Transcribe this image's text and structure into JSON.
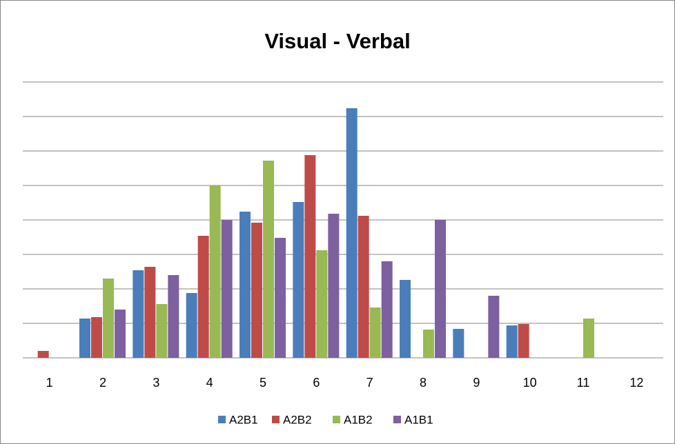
{
  "chart_data": {
    "type": "bar",
    "title": "Visual - Verbal",
    "categories": [
      "1",
      "2",
      "3",
      "4",
      "5",
      "6",
      "7",
      "8",
      "9",
      "10",
      "11",
      "12"
    ],
    "series": [
      {
        "name": "A2B1",
        "color": "#4a7ebb",
        "values": [
          0,
          1.14,
          2.54,
          1.88,
          4.24,
          4.52,
          7.24,
          2.26,
          0.84,
          0.94,
          0,
          0
        ]
      },
      {
        "name": "A2B2",
        "color": "#be4b48",
        "values": [
          0.2,
          1.18,
          2.64,
          3.54,
          3.92,
          5.88,
          4.12,
          0,
          0,
          0.98,
          0,
          0
        ]
      },
      {
        "name": "A1B2",
        "color": "#98b954",
        "values": [
          0,
          2.3,
          1.56,
          5.0,
          5.72,
          3.12,
          1.46,
          0.82,
          0,
          0,
          1.14,
          0
        ]
      },
      {
        "name": "A1B1",
        "color": "#7d60a0",
        "values": [
          0,
          1.4,
          2.4,
          4.0,
          3.48,
          4.18,
          2.8,
          4.0,
          1.8,
          0,
          0,
          0
        ]
      }
    ],
    "ylim": [
      0,
      8
    ],
    "yticks": [
      0,
      1,
      2,
      3,
      4,
      5,
      6,
      7,
      8
    ],
    "grid": true,
    "legend": "bottom"
  }
}
